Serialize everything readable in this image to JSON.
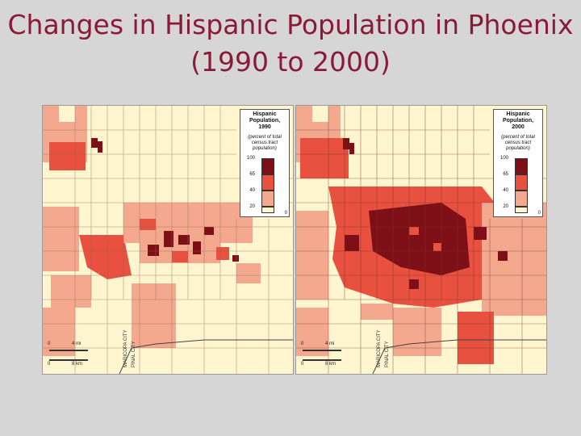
{
  "slide": {
    "title": "Changes in Hispanic Population in Phoenix (1990 to 2000)"
  },
  "maps": [
    {
      "id": "map-1990",
      "legend": {
        "title": "Hispanic Population,",
        "year": "1990",
        "subtitle": "(percent of total census tract population)",
        "ticks": [
          "100",
          "65",
          "40",
          "20",
          "0"
        ],
        "classes": [
          {
            "range": "65-100",
            "color": "#7f0f16"
          },
          {
            "range": "40-65",
            "color": "#e8503f"
          },
          {
            "range": "20-40",
            "color": "#f4a98f"
          },
          {
            "range": "0-20",
            "color": "#fff5cf"
          }
        ]
      },
      "scale": {
        "mi_label": "4 mi",
        "km_label": "8 km",
        "zero": "0"
      },
      "county_labels": [
        "MARICOPA CITY",
        "PINAL CITY"
      ]
    },
    {
      "id": "map-2000",
      "legend": {
        "title": "Hispanic Population,",
        "year": "2000",
        "subtitle": "(percent of total census tract population)",
        "ticks": [
          "100",
          "65",
          "40",
          "20",
          "0"
        ],
        "classes": [
          {
            "range": "65-100",
            "color": "#7f0f16"
          },
          {
            "range": "40-65",
            "color": "#e8503f"
          },
          {
            "range": "20-40",
            "color": "#f4a98f"
          },
          {
            "range": "0-20",
            "color": "#fff5cf"
          }
        ]
      },
      "scale": {
        "mi_label": "4 mi",
        "km_label": "8 km",
        "zero": "0"
      },
      "county_labels": [
        "MARICOPA CITY",
        "PINAL CITY"
      ]
    }
  ],
  "colors": {
    "title": "#8b1a3a",
    "background": "#d6d6d6",
    "class_high": "#7f0f16",
    "class_midhigh": "#e8503f",
    "class_mid": "#f4a98f",
    "class_low": "#fff5cf"
  }
}
